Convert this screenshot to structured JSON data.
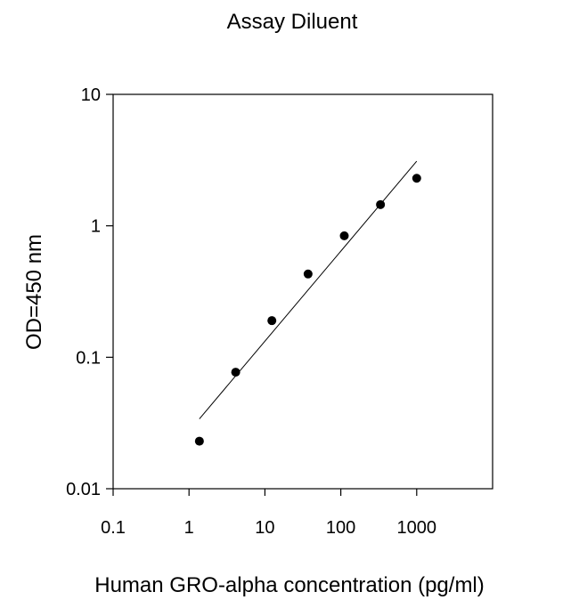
{
  "chart_data": {
    "type": "scatter",
    "title": "Assay Diluent",
    "xlabel": "Human GRO-alpha concentration (pg/ml)",
    "ylabel": "OD=450 nm",
    "x_scale": "log",
    "y_scale": "log",
    "xlim": [
      0.1,
      10000
    ],
    "ylim": [
      0.01,
      10
    ],
    "x_ticks": [
      0.1,
      1,
      10,
      100,
      1000
    ],
    "x_tick_labels": [
      "0.1",
      "1",
      "10",
      "100",
      "1000"
    ],
    "y_ticks": [
      0.01,
      0.1,
      1,
      10
    ],
    "y_tick_labels": [
      "0.01",
      "0.1",
      "1",
      "10"
    ],
    "grid": false,
    "legend": "none",
    "series": [
      {
        "points": [
          {
            "x": 1.37,
            "y": 0.023
          },
          {
            "x": 4.12,
            "y": 0.077
          },
          {
            "x": 12.35,
            "y": 0.19
          },
          {
            "x": 37.04,
            "y": 0.43
          },
          {
            "x": 111.1,
            "y": 0.84
          },
          {
            "x": 333.3,
            "y": 1.45
          },
          {
            "x": 1000,
            "y": 2.3
          }
        ],
        "color": "#000000"
      }
    ],
    "trendline": {
      "x": [
        1.37,
        1000
      ],
      "y": [
        0.034,
        3.1
      ],
      "color": "#000000"
    }
  }
}
